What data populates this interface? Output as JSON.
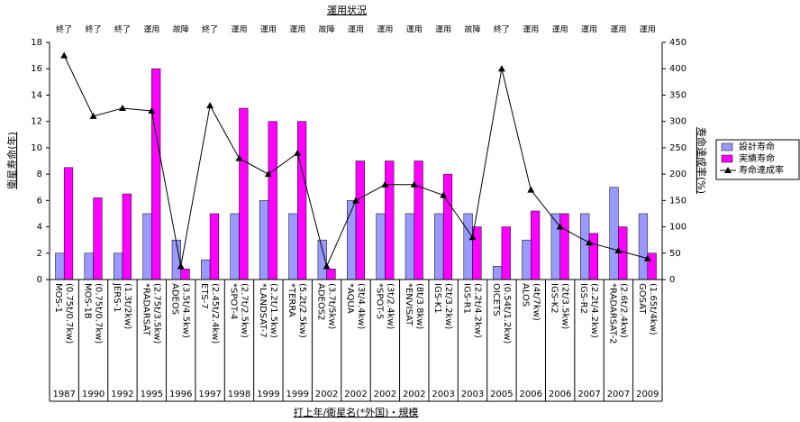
{
  "chart_data": {
    "type": "bar_line",
    "title": "運用状況",
    "y_label": "衛星寿命(年)",
    "y2_label": "寿命達成率(%)",
    "x_label": "打上年/衛星名(*外国)・規模",
    "categories": [
      "MOS-1",
      "MOS-1B",
      "JERS-1",
      "*RADARSAT",
      "ADEOS",
      "ETS-7",
      "*SPOT-4",
      "*LANDSAT-7",
      "*TERRA",
      "ADEOS2",
      "*AQUA",
      "*SPOT-5",
      "*ENVISAT",
      "IGS-K1",
      "IGS-R1",
      "OICETS",
      "ALOS",
      "IGS-K2",
      "IGS-R2",
      "*RADARSAT-2",
      "GOSAT"
    ],
    "specs": [
      "(0.75t/0.7kw)",
      "(0.75t/0.7kw)",
      "(1.3t/2kw)",
      "(2.75t/3.5kw)",
      "(3.5t/4.5kw)",
      "(2.45t/2.4kw)",
      "(2.7t/2.5kw)",
      "(2.2t/1.5kw)",
      "(5.2t/2.5kw)",
      "(3.7t/5kw)",
      "(3t/4.4kw)",
      "(3t/2.4kw)",
      "(8t/3.8kw)",
      "(2t/3.2kw)",
      "(2.2t/4.2kw)",
      "(0.54t/1.2kw)",
      "(4t/7kw)",
      "(2t/3.5kw)",
      "(2.2t/4.2kw)",
      "(2.6t/2.4kw)",
      "(1.65t/4kw)"
    ],
    "years": [
      "1987",
      "1990",
      "1992",
      "1995",
      "1996",
      "1997",
      "1998",
      "1999",
      "1999",
      "2002",
      "2002",
      "2002",
      "2002",
      "2003",
      "2003",
      "2005",
      "2006",
      "2006",
      "2007",
      "2007",
      "2009"
    ],
    "status": [
      "終了",
      "終了",
      "終了",
      "運用",
      "故障",
      "終了",
      "運用",
      "運用",
      "運用",
      "故障",
      "運用",
      "運用",
      "運用",
      "運用",
      "故障",
      "終了",
      "運用",
      "運用",
      "運用",
      "運用",
      "運用"
    ],
    "series": [
      {
        "name": "設計寿命",
        "color": "#9999ff",
        "values": [
          2,
          2,
          2,
          5,
          3,
          1.5,
          5,
          6,
          5,
          3,
          6,
          5,
          5,
          5,
          5,
          1,
          3,
          5,
          5,
          7,
          5
        ]
      },
      {
        "name": "実績寿命",
        "color": "#ff00ff",
        "values": [
          8.5,
          6.2,
          6.5,
          16,
          0.8,
          5,
          13,
          12,
          12,
          0.8,
          9,
          9,
          9,
          8,
          4,
          4,
          5.2,
          5,
          3.5,
          4,
          2
        ]
      },
      {
        "name": "寿命達成率",
        "color": "#000000",
        "axis": "y2",
        "values": [
          425,
          310,
          325,
          320,
          25,
          330,
          230,
          200,
          240,
          25,
          150,
          180,
          180,
          160,
          80,
          400,
          170,
          100,
          70,
          55,
          40
        ]
      }
    ],
    "ylim": [
      0,
      18
    ],
    "yticks": [
      0,
      2,
      4,
      6,
      8,
      10,
      12,
      14,
      16,
      18
    ],
    "y2lim": [
      0,
      450
    ],
    "y2ticks": [
      0,
      50,
      100,
      150,
      200,
      250,
      300,
      350,
      400,
      450
    ],
    "legend": "right"
  }
}
